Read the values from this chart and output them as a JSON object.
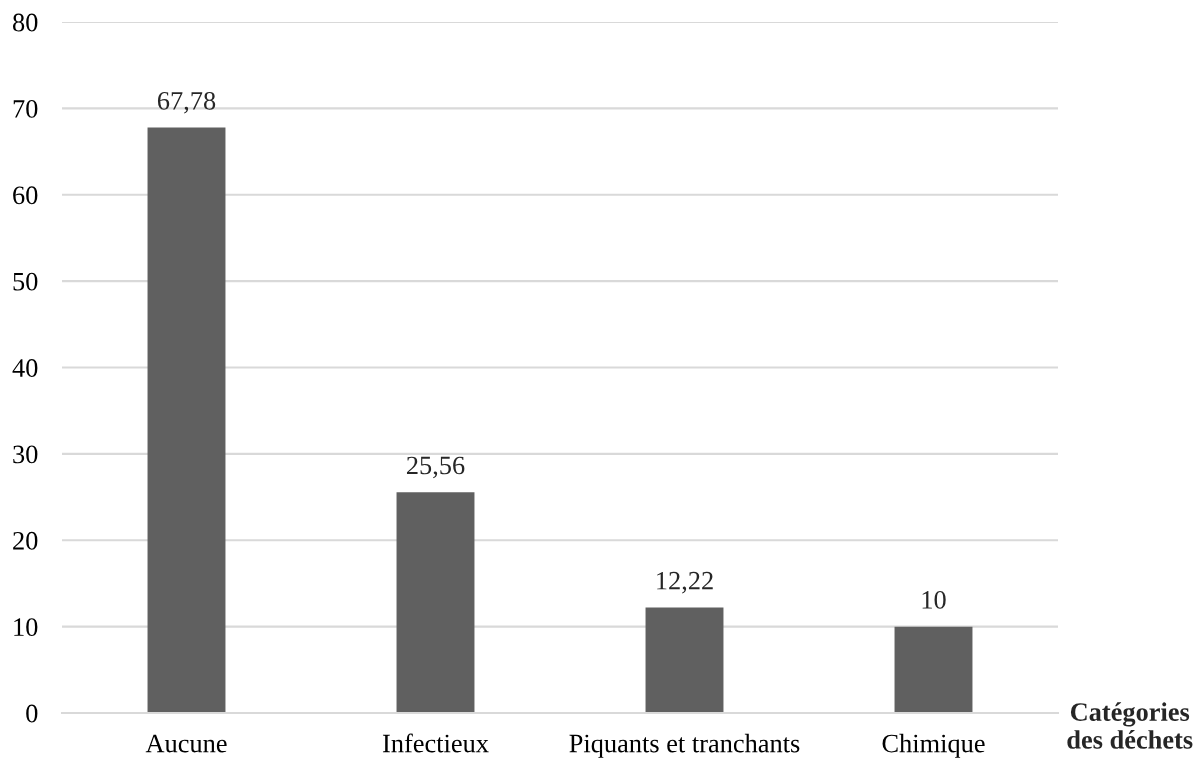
{
  "chart_data": {
    "type": "bar",
    "xlabel": "Catégories\ndes déchets",
    "categories": [
      "Aucune",
      "Infectieux",
      "Piquants et tranchants",
      "Chimique"
    ],
    "values": [
      67.78,
      25.56,
      12.22,
      10
    ],
    "value_labels": [
      "67,78",
      "25,56",
      "12,22",
      "10"
    ],
    "color": "#606060",
    "ylim": [
      0,
      80
    ],
    "yticks": [
      0,
      10,
      20,
      30,
      40,
      50,
      60,
      70,
      80
    ],
    "grid": "y"
  }
}
